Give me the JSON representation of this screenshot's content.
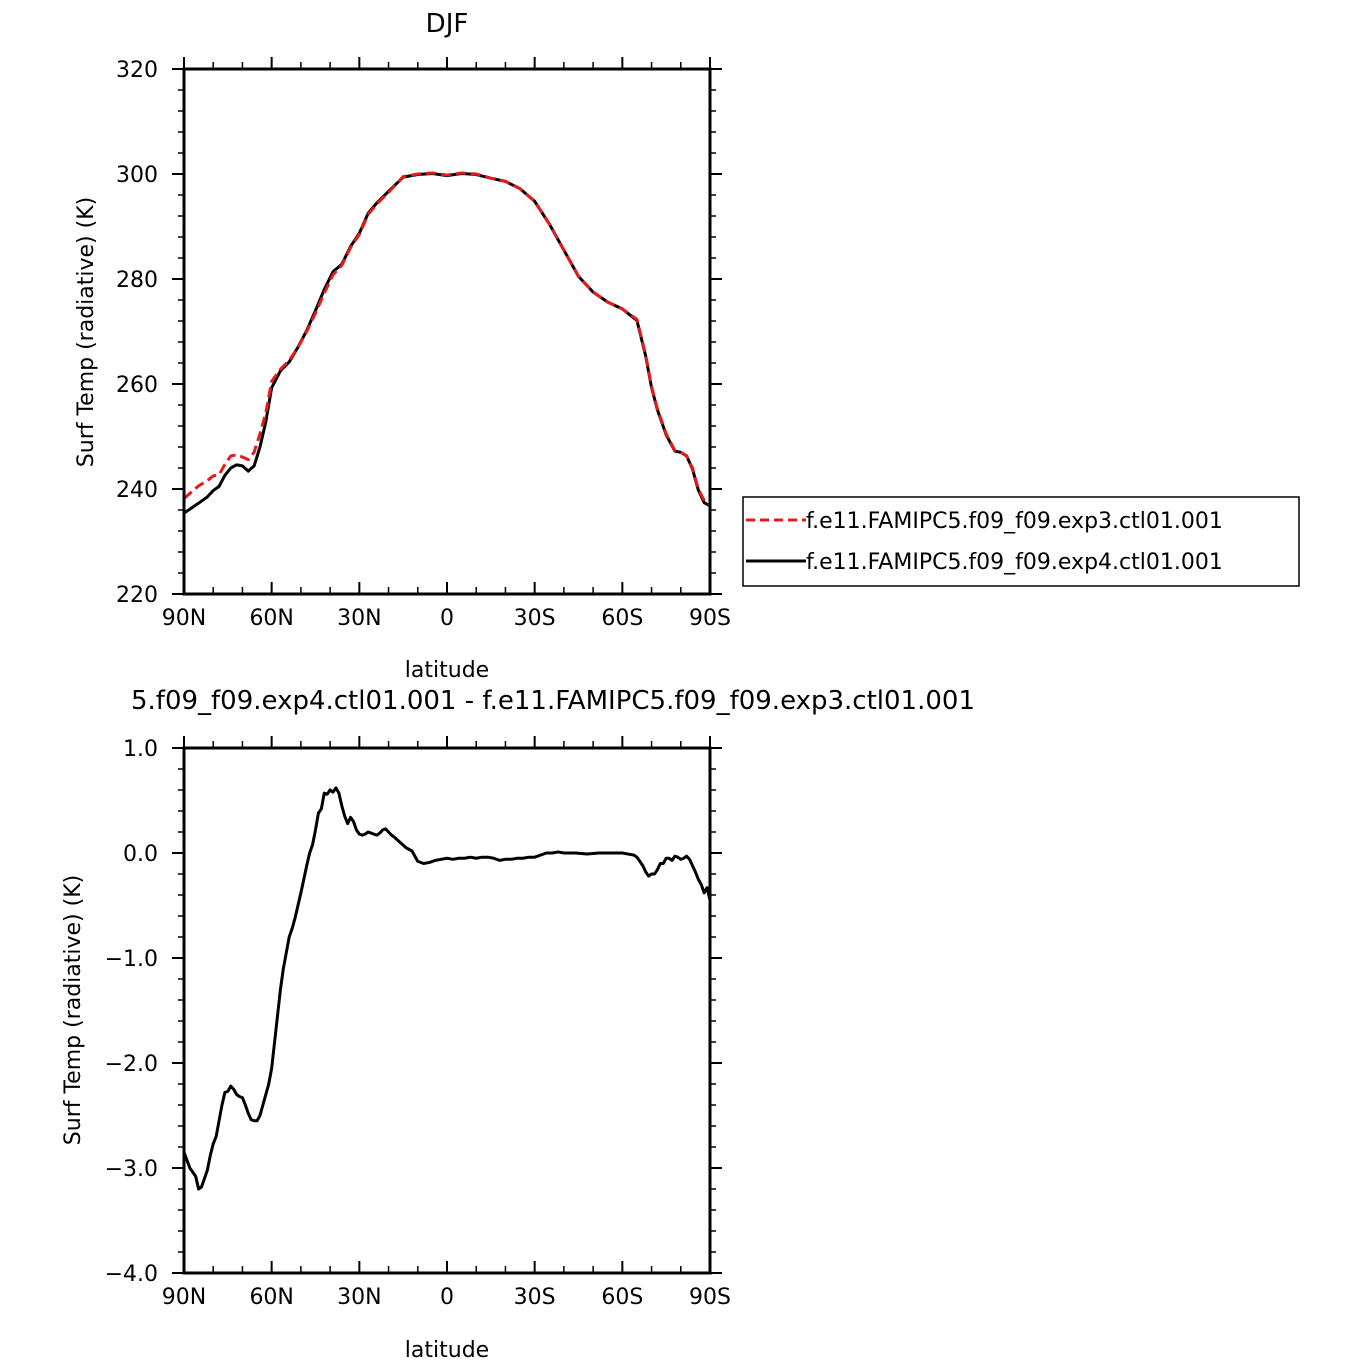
{
  "chart_data": [
    {
      "type": "line",
      "title": "DJF",
      "xlabel": "latitude",
      "ylabel": "Surf Temp (radiative) (K)",
      "xlim": [
        90,
        -90
      ],
      "ylim": [
        220,
        320
      ],
      "x_ticks": [
        {
          "value": 90,
          "label": "90N"
        },
        {
          "value": 60,
          "label": "60N"
        },
        {
          "value": 30,
          "label": "30N"
        },
        {
          "value": 0,
          "label": "0"
        },
        {
          "value": -30,
          "label": "30S"
        },
        {
          "value": -60,
          "label": "60S"
        },
        {
          "value": -90,
          "label": "90S"
        }
      ],
      "y_ticks": [
        {
          "value": 320,
          "label": "320"
        },
        {
          "value": 300,
          "label": "300"
        },
        {
          "value": 280,
          "label": "280"
        },
        {
          "value": 260,
          "label": "260"
        },
        {
          "value": 240,
          "label": "240"
        },
        {
          "value": 220,
          "label": "220"
        }
      ],
      "legend_position": "right",
      "series": [
        {
          "name": "f.e11.FAMIPC5.f09_f09.exp3.ctl01.001",
          "color": "#e41a1c",
          "dash": "dashed",
          "x": [
            90,
            85,
            82,
            80,
            78,
            76,
            74,
            72,
            70,
            68,
            66,
            64,
            62,
            60,
            57,
            54,
            51,
            48,
            45,
            42,
            39,
            36,
            33,
            30,
            27,
            24,
            20,
            15,
            10,
            5,
            0,
            -5,
            -10,
            -15,
            -20,
            -25,
            -30,
            -35,
            -40,
            -45,
            -50,
            -55,
            -60,
            -65,
            -68,
            -70,
            -72,
            -75,
            -78,
            -80,
            -82,
            -84,
            -86,
            -88,
            -90
          ],
          "y": [
            238.2,
            240.6,
            241.6,
            242.5,
            242.7,
            244.7,
            246.3,
            246.5,
            246.1,
            245.6,
            247.0,
            250.5,
            254.5,
            260.5,
            262.8,
            264.5,
            267.0,
            270.0,
            273.5,
            277.3,
            280.8,
            282.6,
            286.0,
            288.5,
            292.3,
            294.3,
            296.5,
            299.5,
            300.0,
            300.2,
            299.8,
            300.2,
            300.0,
            299.2,
            298.6,
            297.2,
            294.8,
            290.5,
            285.5,
            280.5,
            277.5,
            275.6,
            274.3,
            272.3,
            265.5,
            259.5,
            255.3,
            250.5,
            247.3,
            247.0,
            246.3,
            244.0,
            240.0,
            237.8,
            237.0
          ]
        },
        {
          "name": "f.e11.FAMIPC5.f09_f09.exp4.ctl01.001",
          "color": "#000000",
          "dash": "solid",
          "x": [
            90,
            85,
            82,
            80,
            78,
            76,
            74,
            72,
            70,
            68,
            66,
            64,
            62,
            60,
            57,
            54,
            51,
            48,
            45,
            42,
            39,
            36,
            33,
            30,
            27,
            24,
            20,
            15,
            10,
            5,
            0,
            -5,
            -10,
            -15,
            -20,
            -25,
            -30,
            -35,
            -40,
            -45,
            -50,
            -55,
            -60,
            -65,
            -68,
            -70,
            -72,
            -75,
            -78,
            -80,
            -82,
            -84,
            -86,
            -88,
            -90
          ],
          "y": [
            235.4,
            237.3,
            238.5,
            239.7,
            240.5,
            242.6,
            244.0,
            244.6,
            244.4,
            243.4,
            244.4,
            248.0,
            252.8,
            259.3,
            262.5,
            264.2,
            267.0,
            270.2,
            274.0,
            278.0,
            281.4,
            282.8,
            286.2,
            288.7,
            292.5,
            294.5,
            296.7,
            299.4,
            299.9,
            300.1,
            299.7,
            300.1,
            299.9,
            299.2,
            298.6,
            297.2,
            294.8,
            290.5,
            285.5,
            280.5,
            277.5,
            275.6,
            274.3,
            272.1,
            265.3,
            259.3,
            255.1,
            250.3,
            247.2,
            247.0,
            246.3,
            243.8,
            239.8,
            237.4,
            236.8
          ]
        }
      ]
    },
    {
      "type": "line",
      "title": "5.f09_f09.exp4.ctl01.001 - f.e11.FAMIPC5.f09_f09.exp3.ctl01.001",
      "xlabel": "latitude",
      "ylabel": "Surf Temp (radiative) (K)",
      "xlim": [
        90,
        -90
      ],
      "ylim": [
        -4.0,
        1.0
      ],
      "x_ticks": [
        {
          "value": 90,
          "label": "90N"
        },
        {
          "value": 60,
          "label": "60N"
        },
        {
          "value": 30,
          "label": "30N"
        },
        {
          "value": 0,
          "label": "0"
        },
        {
          "value": -30,
          "label": "30S"
        },
        {
          "value": -60,
          "label": "60S"
        },
        {
          "value": -90,
          "label": "90S"
        }
      ],
      "y_ticks": [
        {
          "value": 1.0,
          "label": "1.0"
        },
        {
          "value": 0.0,
          "label": "0.0"
        },
        {
          "value": -1.0,
          "label": "−1.0"
        },
        {
          "value": -2.0,
          "label": "−2.0"
        },
        {
          "value": -3.0,
          "label": "−3.0"
        },
        {
          "value": -4.0,
          "label": "−4.0"
        }
      ],
      "series": [
        {
          "color": "#000000",
          "dash": "solid",
          "x": [
            90,
            88,
            86,
            85,
            84,
            83,
            82,
            81,
            80,
            79,
            78,
            77,
            76,
            75,
            74,
            73,
            72,
            71,
            70,
            69,
            68,
            67,
            66,
            65,
            64,
            63,
            62,
            61,
            60,
            59,
            58,
            57,
            56,
            55,
            54,
            53,
            52,
            51,
            50,
            49,
            48,
            47,
            46,
            45,
            44,
            43,
            42,
            41,
            40,
            39,
            38,
            37,
            36,
            35,
            34,
            33,
            32,
            31,
            30,
            29,
            28,
            27,
            26,
            25,
            24,
            23,
            22,
            21,
            20,
            19,
            18,
            16,
            14,
            12,
            10,
            8,
            6,
            4,
            2,
            0,
            -2,
            -4,
            -6,
            -8,
            -10,
            -12,
            -14,
            -16,
            -18,
            -20,
            -22,
            -24,
            -26,
            -28,
            -30,
            -32,
            -34,
            -36,
            -38,
            -40,
            -44,
            -48,
            -52,
            -56,
            -60,
            -62,
            -64,
            -65,
            -66,
            -67,
            -68,
            -69,
            -70,
            -71,
            -72,
            -73,
            -74,
            -75,
            -76,
            -77,
            -78,
            -79,
            -80,
            -81,
            -82,
            -83,
            -84,
            -85,
            -86,
            -87,
            -88,
            -89,
            -90
          ],
          "y": [
            -2.85,
            -3.0,
            -3.08,
            -3.2,
            -3.18,
            -3.1,
            -3.02,
            -2.88,
            -2.77,
            -2.7,
            -2.55,
            -2.4,
            -2.28,
            -2.27,
            -2.22,
            -2.25,
            -2.3,
            -2.32,
            -2.33,
            -2.4,
            -2.48,
            -2.54,
            -2.55,
            -2.55,
            -2.5,
            -2.4,
            -2.3,
            -2.2,
            -2.05,
            -1.8,
            -1.55,
            -1.3,
            -1.1,
            -0.95,
            -0.8,
            -0.72,
            -0.62,
            -0.5,
            -0.38,
            -0.25,
            -0.12,
            0.0,
            0.08,
            0.22,
            0.38,
            0.42,
            0.57,
            0.56,
            0.6,
            0.58,
            0.62,
            0.57,
            0.45,
            0.35,
            0.28,
            0.34,
            0.3,
            0.22,
            0.18,
            0.17,
            0.18,
            0.2,
            0.19,
            0.18,
            0.17,
            0.19,
            0.22,
            0.23,
            0.2,
            0.17,
            0.15,
            0.1,
            0.05,
            0.02,
            -0.08,
            -0.1,
            -0.09,
            -0.07,
            -0.06,
            -0.05,
            -0.06,
            -0.05,
            -0.05,
            -0.04,
            -0.05,
            -0.04,
            -0.04,
            -0.05,
            -0.07,
            -0.06,
            -0.06,
            -0.05,
            -0.05,
            -0.04,
            -0.04,
            -0.02,
            0.0,
            0.0,
            0.01,
            0.0,
            0.0,
            -0.01,
            0.0,
            0.0,
            0.0,
            -0.01,
            -0.02,
            -0.04,
            -0.08,
            -0.12,
            -0.18,
            -0.22,
            -0.2,
            -0.2,
            -0.16,
            -0.1,
            -0.1,
            -0.05,
            -0.05,
            -0.07,
            -0.03,
            -0.04,
            -0.06,
            -0.05,
            -0.03,
            -0.06,
            -0.12,
            -0.18,
            -0.25,
            -0.3,
            -0.38,
            -0.33,
            -0.45
          ]
        }
      ]
    }
  ]
}
